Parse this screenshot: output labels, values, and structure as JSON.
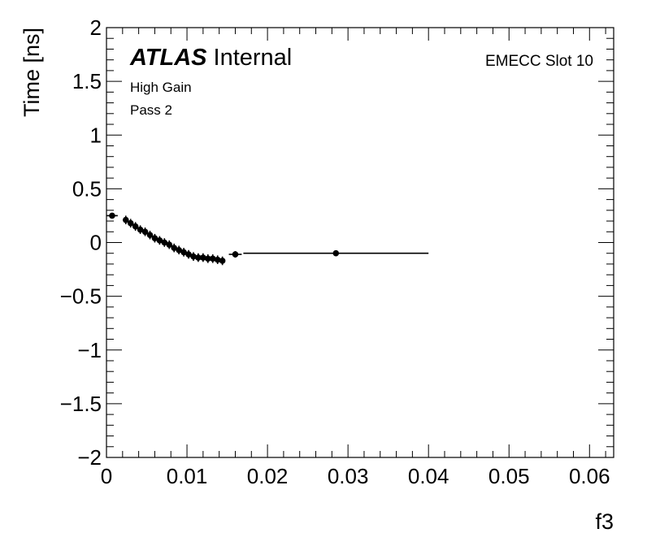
{
  "chart_data": {
    "type": "scatter",
    "title": "",
    "xlabel": "f3",
    "ylabel": "Time [ns]",
    "xlim": [
      0,
      0.063
    ],
    "ylim": [
      -2,
      2
    ],
    "x_ticks": [
      0,
      0.01,
      0.02,
      0.03,
      0.04,
      0.05,
      0.06
    ],
    "x_tick_labels": [
      "0",
      "0.01",
      "0.02",
      "0.03",
      "0.04",
      "0.05",
      "0.06"
    ],
    "y_ticks": [
      -2,
      -1.5,
      -1,
      -0.5,
      0,
      0.5,
      1,
      1.5,
      2
    ],
    "y_tick_labels": [
      "−2",
      "−1.5",
      "−1",
      "−0.5",
      "0",
      "0.5",
      "1",
      "1.5",
      "2"
    ],
    "grid": false,
    "legend": null,
    "annotations": {
      "atlas_bold": "ATLAS",
      "atlas_suffix": "Internal",
      "gain": "High Gain",
      "pass": "Pass 2",
      "slot": "EMECC Slot 10"
    },
    "series": [
      {
        "x": [
          0.0007,
          0.0024,
          0.003,
          0.0036,
          0.0042,
          0.0048,
          0.0054,
          0.006,
          0.0066,
          0.0072,
          0.0078,
          0.0084,
          0.009,
          0.0096,
          0.0102,
          0.0108,
          0.0114,
          0.012,
          0.0126,
          0.0132,
          0.0138,
          0.0144,
          0.016,
          0.0285
        ],
        "xerr": [
          0.0007,
          0.0003,
          0.0003,
          0.0003,
          0.0003,
          0.0003,
          0.0003,
          0.0003,
          0.0003,
          0.0003,
          0.0003,
          0.0003,
          0.0003,
          0.0003,
          0.0003,
          0.0003,
          0.0003,
          0.0003,
          0.0003,
          0.0003,
          0.0003,
          0.0003,
          0.0008,
          0.0115
        ],
        "y": [
          0.25,
          0.21,
          0.18,
          0.15,
          0.12,
          0.1,
          0.07,
          0.04,
          0.02,
          0.0,
          -0.02,
          -0.05,
          -0.07,
          -0.09,
          -0.11,
          -0.13,
          -0.14,
          -0.14,
          -0.15,
          -0.15,
          -0.16,
          -0.17,
          -0.11,
          -0.1
        ],
        "yerr": [
          0.02,
          0.04,
          0.04,
          0.04,
          0.04,
          0.04,
          0.04,
          0.04,
          0.04,
          0.04,
          0.04,
          0.04,
          0.04,
          0.04,
          0.04,
          0.04,
          0.04,
          0.04,
          0.04,
          0.04,
          0.04,
          0.04,
          0.03,
          0.01
        ]
      }
    ]
  }
}
